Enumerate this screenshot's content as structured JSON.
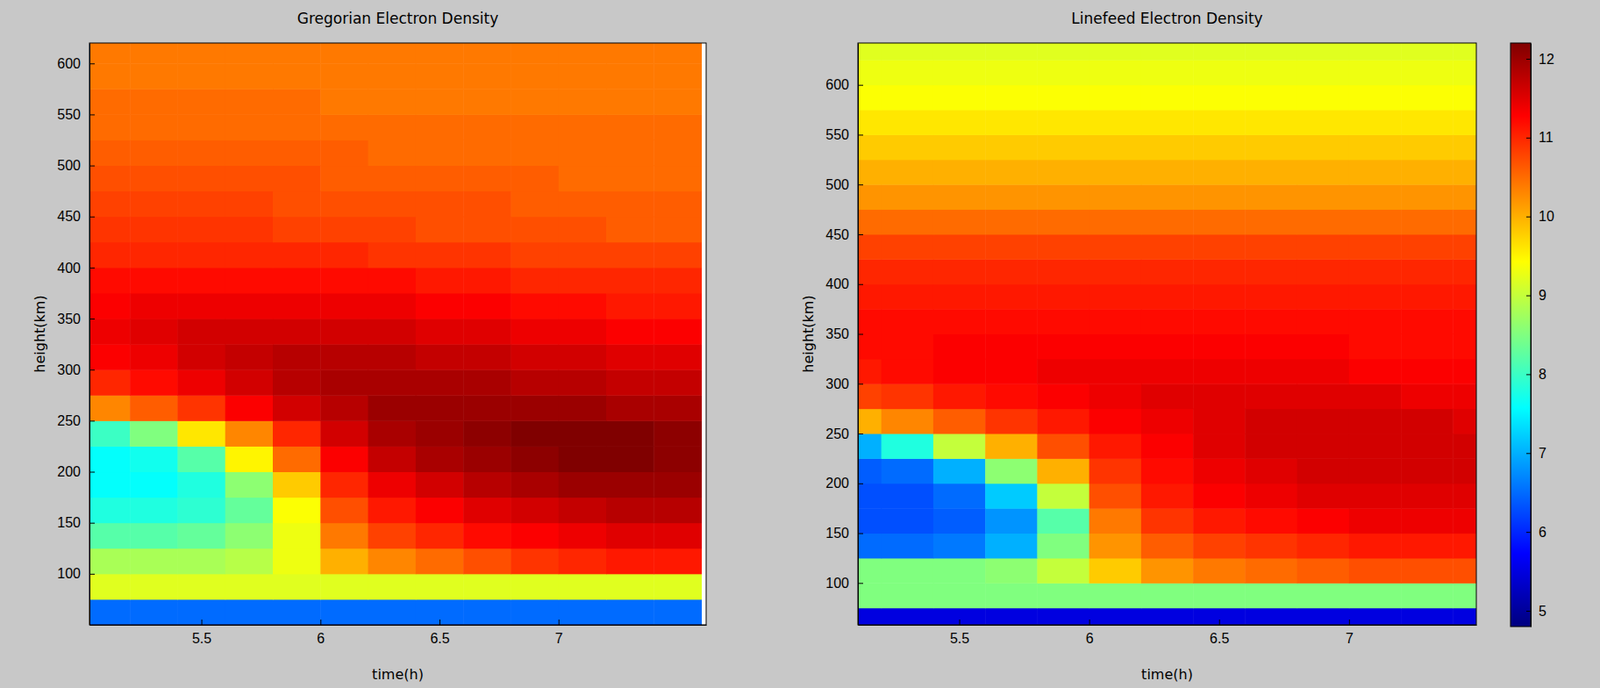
{
  "chart_data": [
    {
      "type": "heatmap",
      "title": "Gregorian Electron Density",
      "x_label": "time(h)",
      "y_label": "height(km)",
      "xlim": [
        5.03,
        7.62
      ],
      "ylim": [
        50,
        620
      ],
      "xticks": [
        5.5,
        6,
        6.5,
        7
      ],
      "yticks": [
        100,
        150,
        200,
        250,
        300,
        350,
        400,
        450,
        500,
        550,
        600
      ],
      "x_edges": [
        5.0,
        5.2,
        5.4,
        5.6,
        5.8,
        6.0,
        6.2,
        6.4,
        6.6,
        6.8,
        7.0,
        7.2,
        7.4,
        7.6
      ],
      "y_edges": [
        50,
        75,
        100,
        125,
        150,
        175,
        200,
        225,
        250,
        275,
        300,
        325,
        350,
        375,
        400,
        425,
        450,
        475,
        500,
        525,
        550,
        575,
        600,
        625,
        650
      ],
      "cells": [
        [
          6.5,
          6.5,
          6.5,
          6.5,
          6.5,
          6.5,
          6.5,
          6.5,
          6.5,
          6.5,
          6.5,
          6.5,
          6.5
        ],
        [
          9.2,
          9.2,
          9.2,
          9.2,
          9.2,
          9.2,
          9.2,
          9.2,
          9.2,
          9.2,
          9.2,
          9.2,
          9.2
        ],
        [
          8.8,
          8.8,
          8.8,
          8.9,
          9.3,
          10.0,
          10.3,
          10.5,
          10.7,
          10.9,
          11.0,
          11.1,
          11.1
        ],
        [
          8.2,
          8.2,
          8.3,
          8.6,
          9.3,
          10.4,
          10.8,
          11.0,
          11.2,
          11.3,
          11.4,
          11.5,
          11.5
        ],
        [
          7.8,
          7.8,
          7.9,
          8.3,
          9.4,
          10.7,
          11.1,
          11.3,
          11.5,
          11.6,
          11.7,
          11.8,
          11.8
        ],
        [
          7.6,
          7.6,
          7.8,
          8.6,
          9.8,
          11.0,
          11.4,
          11.6,
          11.8,
          11.9,
          12.0,
          12.0,
          12.0
        ],
        [
          7.6,
          7.7,
          8.2,
          9.5,
          10.5,
          11.3,
          11.7,
          11.9,
          12.0,
          12.1,
          12.2,
          12.2,
          12.1
        ],
        [
          8.0,
          8.5,
          9.6,
          10.3,
          11.0,
          11.6,
          11.9,
          12.0,
          12.1,
          12.2,
          12.2,
          12.2,
          12.1
        ],
        [
          10.3,
          10.6,
          10.9,
          11.3,
          11.6,
          11.8,
          12.0,
          12.0,
          12.0,
          12.0,
          12.0,
          11.9,
          11.9
        ],
        [
          11.0,
          11.2,
          11.4,
          11.6,
          11.8,
          11.9,
          11.9,
          11.9,
          11.9,
          11.8,
          11.8,
          11.7,
          11.7
        ],
        [
          11.3,
          11.4,
          11.6,
          11.7,
          11.8,
          11.8,
          11.8,
          11.7,
          11.7,
          11.6,
          11.6,
          11.5,
          11.5
        ],
        [
          11.4,
          11.5,
          11.6,
          11.6,
          11.6,
          11.6,
          11.6,
          11.5,
          11.5,
          11.4,
          11.4,
          11.3,
          11.3
        ],
        [
          11.3,
          11.4,
          11.4,
          11.4,
          11.4,
          11.4,
          11.4,
          11.3,
          11.3,
          11.2,
          11.2,
          11.1,
          11.1
        ],
        [
          11.2,
          11.2,
          11.2,
          11.2,
          11.2,
          11.2,
          11.2,
          11.1,
          11.1,
          11.0,
          11.0,
          11.0,
          11.0
        ],
        [
          11.0,
          11.0,
          11.0,
          11.0,
          11.0,
          11.0,
          10.9,
          10.9,
          10.9,
          10.8,
          10.8,
          10.8,
          10.8
        ],
        [
          10.9,
          10.9,
          10.9,
          10.9,
          10.8,
          10.8,
          10.8,
          10.7,
          10.7,
          10.7,
          10.7,
          10.6,
          10.6
        ],
        [
          10.8,
          10.8,
          10.8,
          10.8,
          10.7,
          10.7,
          10.7,
          10.7,
          10.7,
          10.6,
          10.6,
          10.6,
          10.6
        ],
        [
          10.7,
          10.7,
          10.7,
          10.7,
          10.7,
          10.6,
          10.6,
          10.6,
          10.6,
          10.6,
          10.5,
          10.5,
          10.5
        ],
        [
          10.6,
          10.6,
          10.6,
          10.6,
          10.6,
          10.6,
          10.5,
          10.5,
          10.5,
          10.5,
          10.5,
          10.5,
          10.5
        ],
        [
          10.5,
          10.5,
          10.5,
          10.5,
          10.5,
          10.5,
          10.5,
          10.5,
          10.5,
          10.5,
          10.5,
          10.5,
          10.5
        ],
        [
          10.5,
          10.5,
          10.5,
          10.5,
          10.5,
          10.4,
          10.4,
          10.4,
          10.4,
          10.4,
          10.4,
          10.4,
          10.4
        ],
        [
          10.4,
          10.4,
          10.4,
          10.4,
          10.4,
          10.4,
          10.4,
          10.4,
          10.4,
          10.4,
          10.4,
          10.4,
          10.4
        ],
        [
          10.4,
          10.4,
          10.4,
          10.4,
          10.4,
          10.4,
          10.4,
          10.4,
          10.4,
          10.4,
          10.4,
          10.4,
          10.4
        ],
        [
          10.4,
          10.4,
          10.4,
          10.4,
          10.4,
          10.4,
          10.4,
          10.4,
          10.4,
          10.4,
          10.4,
          10.4,
          10.4
        ]
      ]
    },
    {
      "type": "heatmap",
      "title": "Linefeed Electron Density",
      "x_label": "time(h)",
      "y_label": "height(km)",
      "xlim": [
        5.11,
        7.49
      ],
      "ylim": [
        58,
        642
      ],
      "xticks": [
        5.5,
        6,
        6.5,
        7
      ],
      "yticks": [
        100,
        150,
        200,
        250,
        300,
        350,
        400,
        450,
        500,
        550,
        600
      ],
      "x_edges": [
        5.0,
        5.2,
        5.4,
        5.6,
        5.8,
        6.0,
        6.2,
        6.4,
        6.6,
        6.8,
        7.0,
        7.2,
        7.4,
        7.6
      ],
      "y_edges": [
        50,
        75,
        100,
        125,
        150,
        175,
        200,
        225,
        250,
        275,
        300,
        325,
        350,
        375,
        400,
        425,
        450,
        475,
        500,
        525,
        550,
        575,
        600,
        625,
        650
      ],
      "cells": [
        [
          5.5,
          5.5,
          5.5,
          5.5,
          5.5,
          5.5,
          5.5,
          5.5,
          5.5,
          5.5,
          5.5,
          5.5,
          5.5
        ],
        [
          8.5,
          8.5,
          8.5,
          8.5,
          8.5,
          8.5,
          8.5,
          8.5,
          8.5,
          8.5,
          8.5,
          8.5,
          8.5
        ],
        [
          8.5,
          8.5,
          8.5,
          8.6,
          9.0,
          9.8,
          10.2,
          10.4,
          10.5,
          10.6,
          10.7,
          10.7,
          10.7
        ],
        [
          6.5,
          6.5,
          6.6,
          7.0,
          8.5,
          10.2,
          10.6,
          10.8,
          10.9,
          11.0,
          11.1,
          11.1,
          11.1
        ],
        [
          6.3,
          6.3,
          6.4,
          6.8,
          8.2,
          10.4,
          10.9,
          11.1,
          11.2,
          11.3,
          11.4,
          11.4,
          11.4
        ],
        [
          6.3,
          6.3,
          6.5,
          7.2,
          9.0,
          10.7,
          11.1,
          11.3,
          11.4,
          11.5,
          11.5,
          11.5,
          11.5
        ],
        [
          6.4,
          6.5,
          7.0,
          8.6,
          10.0,
          10.9,
          11.2,
          11.4,
          11.5,
          11.6,
          11.6,
          11.6,
          11.6
        ],
        [
          7.0,
          7.8,
          9.0,
          10.0,
          10.7,
          11.1,
          11.3,
          11.5,
          11.6,
          11.6,
          11.6,
          11.6,
          11.6
        ],
        [
          10.0,
          10.3,
          10.6,
          10.9,
          11.1,
          11.3,
          11.4,
          11.5,
          11.6,
          11.6,
          11.6,
          11.6,
          11.5
        ],
        [
          10.8,
          10.9,
          11.1,
          11.2,
          11.3,
          11.4,
          11.5,
          11.5,
          11.5,
          11.5,
          11.5,
          11.4,
          11.4
        ],
        [
          11.1,
          11.2,
          11.3,
          11.3,
          11.4,
          11.4,
          11.4,
          11.4,
          11.4,
          11.4,
          11.3,
          11.3,
          11.3
        ],
        [
          11.2,
          11.2,
          11.3,
          11.3,
          11.3,
          11.3,
          11.3,
          11.3,
          11.3,
          11.3,
          11.2,
          11.2,
          11.2
        ],
        [
          11.2,
          11.2,
          11.2,
          11.2,
          11.2,
          11.2,
          11.2,
          11.2,
          11.2,
          11.2,
          11.2,
          11.2,
          11.2
        ],
        [
          11.1,
          11.1,
          11.1,
          11.1,
          11.1,
          11.1,
          11.1,
          11.1,
          11.1,
          11.1,
          11.1,
          11.1,
          11.1
        ],
        [
          11.0,
          11.0,
          11.0,
          11.0,
          11.0,
          11.0,
          11.0,
          11.0,
          11.0,
          11.0,
          11.0,
          11.0,
          11.0
        ],
        [
          10.8,
          10.8,
          10.8,
          10.8,
          10.8,
          10.8,
          10.8,
          10.8,
          10.8,
          10.8,
          10.8,
          10.8,
          10.8
        ],
        [
          10.5,
          10.5,
          10.5,
          10.5,
          10.5,
          10.5,
          10.5,
          10.5,
          10.5,
          10.5,
          10.5,
          10.5,
          10.5
        ],
        [
          10.2,
          10.2,
          10.2,
          10.2,
          10.2,
          10.2,
          10.2,
          10.2,
          10.2,
          10.2,
          10.2,
          10.2,
          10.2
        ],
        [
          10.0,
          10.0,
          10.0,
          10.0,
          10.0,
          10.0,
          10.0,
          10.0,
          10.0,
          10.0,
          10.0,
          10.0,
          10.0
        ],
        [
          9.8,
          9.8,
          9.8,
          9.8,
          9.8,
          9.8,
          9.8,
          9.8,
          9.8,
          9.8,
          9.8,
          9.8,
          9.8
        ],
        [
          9.6,
          9.6,
          9.6,
          9.6,
          9.6,
          9.6,
          9.6,
          9.6,
          9.6,
          9.6,
          9.6,
          9.6,
          9.6
        ],
        [
          9.4,
          9.4,
          9.4,
          9.4,
          9.4,
          9.4,
          9.4,
          9.4,
          9.4,
          9.4,
          9.4,
          9.4,
          9.4
        ],
        [
          9.3,
          9.3,
          9.3,
          9.3,
          9.3,
          9.3,
          9.3,
          9.3,
          9.3,
          9.3,
          9.3,
          9.3,
          9.3
        ],
        [
          9.2,
          9.2,
          9.2,
          9.2,
          9.2,
          9.2,
          9.2,
          9.2,
          9.2,
          9.2,
          9.2,
          9.2,
          9.2
        ]
      ],
      "colorbar": {
        "range": [
          4.8,
          12.2
        ],
        "ticks": [
          5,
          6,
          7,
          8,
          9,
          10,
          11,
          12
        ]
      }
    }
  ]
}
